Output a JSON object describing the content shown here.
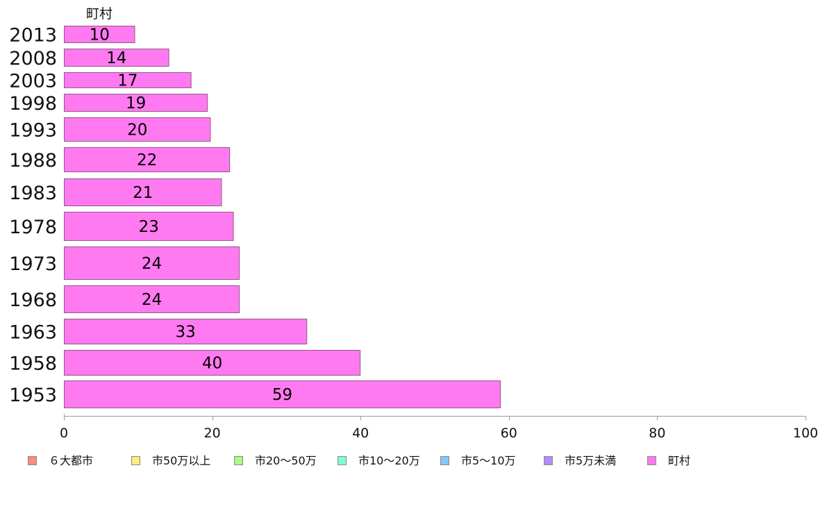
{
  "chart_data": {
    "type": "bar",
    "orientation": "horizontal",
    "series_label": "町村",
    "categories": [
      "2013",
      "2008",
      "2003",
      "1998",
      "1993",
      "1988",
      "1983",
      "1978",
      "1973",
      "1968",
      "1963",
      "1958",
      "1953"
    ],
    "series": [
      {
        "name": "町村",
        "values": [
          10,
          14,
          17,
          19,
          20,
          22,
          21,
          23,
          24,
          24,
          33,
          40,
          59
        ],
        "precise_values": [
          9.6,
          14.2,
          17.2,
          19.4,
          19.8,
          22.4,
          21.3,
          22.9,
          23.7,
          23.7,
          32.8,
          40.0,
          58.9
        ]
      }
    ],
    "data_labels": [
      "10",
      "14",
      "17",
      "19",
      "20",
      "22",
      "21",
      "23",
      "24",
      "24",
      "33",
      "40",
      "59"
    ],
    "xlim": [
      0,
      100
    ],
    "x_ticks": [
      "0",
      "20",
      "40",
      "60",
      "80",
      "100"
    ],
    "title": "",
    "xlabel": "",
    "ylabel": "",
    "legend": {
      "placement": "bottom",
      "items": [
        {
          "label": "６大都市",
          "color": "#ff8a80"
        },
        {
          "label": "市50万以上",
          "color": "#ffeb80"
        },
        {
          "label": "市20～50万",
          "color": "#a6ff80"
        },
        {
          "label": "市10～20万",
          "color": "#80ffcc"
        },
        {
          "label": "市5～10万",
          "color": "#80c8ff"
        },
        {
          "label": "市5万未満",
          "color": "#b38cff"
        },
        {
          "label": "町村",
          "color": "#ff7af0"
        }
      ]
    },
    "bar_color": "#ff7af0",
    "bar_edge_color": "#8d5a84",
    "grid": false
  }
}
